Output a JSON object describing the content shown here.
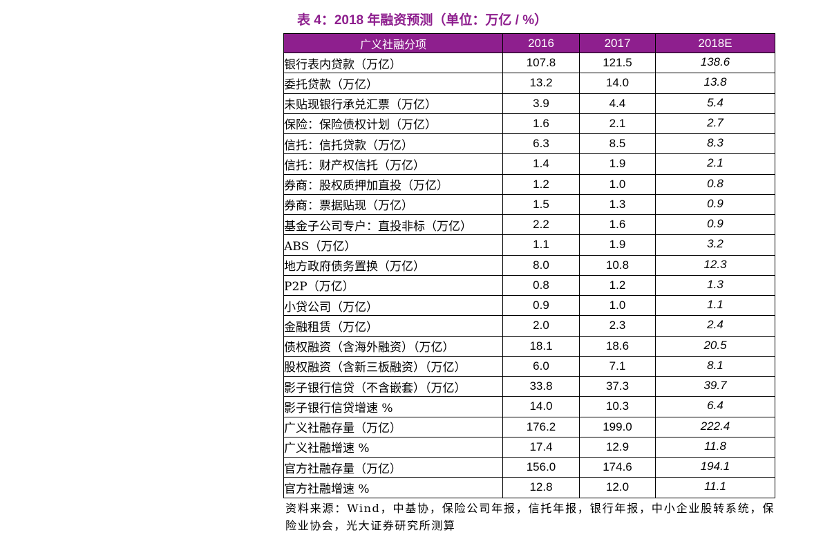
{
  "title": "表 4：2018 年融资预测（单位：万亿 / %）",
  "colors": {
    "accent": "#8e1f8e",
    "header_text": "#ffffff",
    "border": "#000000"
  },
  "table": {
    "headers": [
      "广义社融分项",
      "2016",
      "2017",
      "2018E"
    ],
    "estimate_column_style": "italic",
    "rows": [
      {
        "label": "银行表内贷款（万亿）",
        "level": 0,
        "values": [
          "107.8",
          "121.5",
          "138.6"
        ]
      },
      {
        "label": "委托贷款（万亿）",
        "level": 0,
        "values": [
          "13.2",
          "14.0",
          "13.8"
        ]
      },
      {
        "label": "未贴现银行承兑汇票（万亿）",
        "level": 0,
        "values": [
          "3.9",
          "4.4",
          "5.4"
        ]
      },
      {
        "label": "保险：保险债权计划（万亿）",
        "level": 0,
        "values": [
          "1.6",
          "2.1",
          "2.7"
        ]
      },
      {
        "label": "信托：信托贷款（万亿）",
        "level": 0,
        "values": [
          "6.3",
          "8.5",
          "8.3"
        ]
      },
      {
        "label": "信托：财产权信托（万亿）",
        "level": 0,
        "values": [
          "1.4",
          "1.9",
          "2.1"
        ]
      },
      {
        "label": "券商：股权质押加直投（万亿）",
        "level": 0,
        "values": [
          "1.2",
          "1.0",
          "0.8"
        ]
      },
      {
        "label": "券商：票据贴现（万亿）",
        "level": 0,
        "values": [
          "1.5",
          "1.3",
          "0.9"
        ]
      },
      {
        "label": "基金子公司专户：直投非标（万亿）",
        "level": 0,
        "values": [
          "2.2",
          "1.6",
          "0.9"
        ]
      },
      {
        "label": "ABS（万亿）",
        "level": 0,
        "values": [
          "1.1",
          "1.9",
          "3.2"
        ]
      },
      {
        "label": "地方政府债务置换（万亿）",
        "level": 0,
        "values": [
          "8.0",
          "10.8",
          "12.3"
        ]
      },
      {
        "label": "P2P（万亿）",
        "level": 0,
        "values": [
          "0.8",
          "1.2",
          "1.3"
        ]
      },
      {
        "label": "小贷公司（万亿）",
        "level": 0,
        "values": [
          "0.9",
          "1.0",
          "1.1"
        ]
      },
      {
        "label": "金融租赁（万亿）",
        "level": 0,
        "values": [
          "2.0",
          "2.3",
          "2.4"
        ]
      },
      {
        "label": "债权融资（含海外融资）（万亿）",
        "level": 0,
        "values": [
          "18.1",
          "18.6",
          "20.5"
        ]
      },
      {
        "label": "股权融资（含新三板融资）（万亿）",
        "level": 0,
        "values": [
          "6.0",
          "7.1",
          "8.1"
        ]
      },
      {
        "label": "影子银行信贷（不含嵌套）（万亿）",
        "level": 1,
        "values": [
          "33.8",
          "37.3",
          "39.7"
        ]
      },
      {
        "label": "影子银行信贷增速 %",
        "level": 2,
        "values": [
          "14.0",
          "10.3",
          "6.4"
        ]
      },
      {
        "label": "广义社融存量（万亿）",
        "level": 1,
        "values": [
          "176.2",
          "199.0",
          "222.4"
        ]
      },
      {
        "label": "广义社融增速 %",
        "level": 2,
        "values": [
          "17.4",
          "12.9",
          "11.8"
        ]
      },
      {
        "label": "官方社融存量（万亿）",
        "level": 1,
        "values": [
          "156.0",
          "174.6",
          "194.1"
        ]
      },
      {
        "label": "官方社融增速 %",
        "level": 2,
        "values": [
          "12.8",
          "12.0",
          "11.1"
        ]
      }
    ]
  },
  "source": "资料来源：Wind，中基协，保险公司年报，信托年报，银行年报，中小企业股转系统，保险业协会，光大证券研究所测算"
}
